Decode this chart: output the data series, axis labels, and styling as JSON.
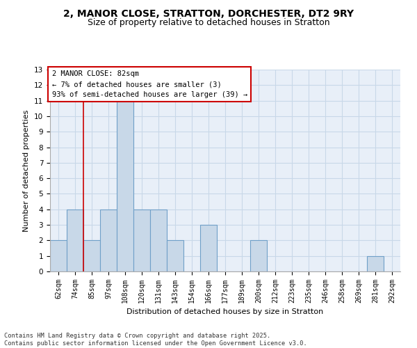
{
  "title_line1": "2, MANOR CLOSE, STRATTON, DORCHESTER, DT2 9RY",
  "title_line2": "Size of property relative to detached houses in Stratton",
  "xlabel": "Distribution of detached houses by size in Stratton",
  "ylabel": "Number of detached properties",
  "categories": [
    "62sqm",
    "74sqm",
    "85sqm",
    "97sqm",
    "108sqm",
    "120sqm",
    "131sqm",
    "143sqm",
    "154sqm",
    "166sqm",
    "177sqm",
    "189sqm",
    "200sqm",
    "212sqm",
    "223sqm",
    "235sqm",
    "246sqm",
    "258sqm",
    "269sqm",
    "281sqm",
    "292sqm"
  ],
  "values": [
    2,
    4,
    2,
    4,
    11,
    4,
    4,
    2,
    0,
    3,
    0,
    0,
    2,
    0,
    0,
    0,
    0,
    0,
    0,
    1,
    0
  ],
  "bar_color": "#c8d8e8",
  "bar_edgecolor": "#6fa0c8",
  "bar_linewidth": 0.8,
  "vline_x": 1.5,
  "vline_color": "#cc0000",
  "vline_linewidth": 1.2,
  "annotation_box_text": "2 MANOR CLOSE: 82sqm\n← 7% of detached houses are smaller (3)\n93% of semi-detached houses are larger (39) →",
  "box_edgecolor": "#cc0000",
  "box_facecolor": "white",
  "ylim": [
    0,
    13
  ],
  "yticks": [
    0,
    1,
    2,
    3,
    4,
    5,
    6,
    7,
    8,
    9,
    10,
    11,
    12,
    13
  ],
  "grid_color": "#c8d8e8",
  "bg_color": "#e8eff8",
  "footer": "Contains HM Land Registry data © Crown copyright and database right 2025.\nContains public sector information licensed under the Open Government Licence v3.0.",
  "title_fontsize": 10,
  "subtitle_fontsize": 9,
  "tick_fontsize": 7,
  "label_fontsize": 8,
  "annotation_fontsize": 7.5,
  "ylabel_fontsize": 8
}
